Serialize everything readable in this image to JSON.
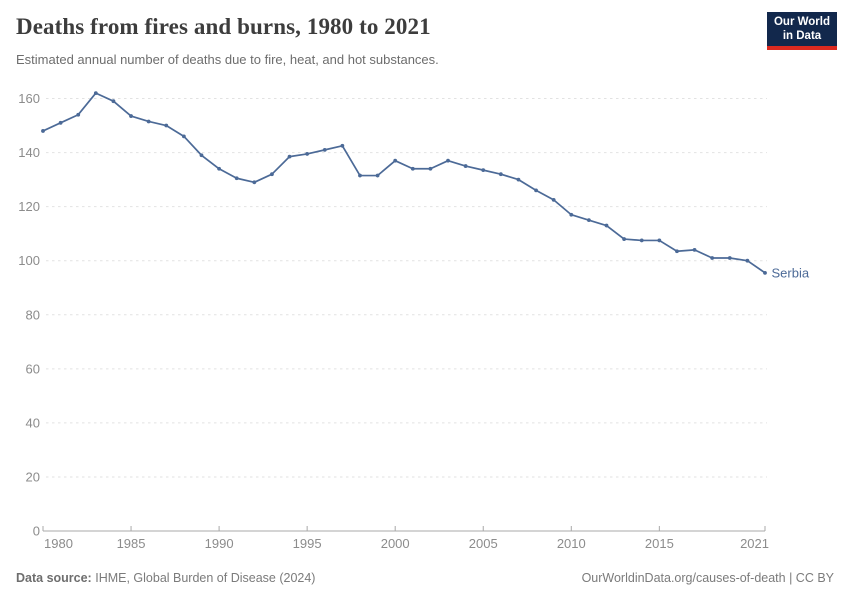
{
  "header": {
    "title": "Deaths from fires and burns, 1980 to 2021",
    "subtitle": "Estimated annual number of deaths due to fire, heat, and hot substances."
  },
  "logo": {
    "line1": "Our World",
    "line2": "in Data",
    "bg_color": "#12284c",
    "accent_color": "#dc2a20"
  },
  "chart_data": {
    "type": "line",
    "title": "Deaths from fires and burns, 1980 to 2021",
    "xlabel": "",
    "ylabel": "",
    "xlim": [
      1980,
      2021
    ],
    "ylim": [
      0,
      160
    ],
    "xticks": [
      1980,
      1985,
      1990,
      1995,
      2000,
      2005,
      2010,
      2015,
      2021
    ],
    "yticks": [
      0,
      20,
      40,
      60,
      80,
      100,
      120,
      140,
      160
    ],
    "grid": "horizontal-dashed",
    "legend_position": "end-of-line-label",
    "series": [
      {
        "name": "Serbia",
        "color": "#4c6a97",
        "x": [
          1980,
          1981,
          1982,
          1983,
          1984,
          1985,
          1986,
          1987,
          1988,
          1989,
          1990,
          1991,
          1992,
          1993,
          1994,
          1995,
          1996,
          1997,
          1998,
          1999,
          2000,
          2001,
          2002,
          2003,
          2004,
          2005,
          2006,
          2007,
          2008,
          2009,
          2010,
          2011,
          2012,
          2013,
          2014,
          2015,
          2016,
          2017,
          2018,
          2019,
          2020,
          2021
        ],
        "values": [
          148,
          151,
          154,
          162,
          159,
          153.5,
          151.5,
          150,
          146,
          139,
          134,
          130.5,
          129,
          132,
          138.5,
          139.5,
          141,
          142.5,
          131.5,
          131.5,
          137,
          134,
          134,
          137,
          135,
          133.5,
          132,
          130,
          126,
          122.5,
          117,
          115,
          113,
          108,
          107.5,
          107.5,
          103.5,
          104,
          101,
          101,
          100,
          95.5
        ]
      }
    ]
  },
  "footer": {
    "source_label": "Data source:",
    "source_value": "IHME, Global Burden of Disease (2024)",
    "credit": "OurWorldinData.org/causes-of-death | CC BY"
  }
}
